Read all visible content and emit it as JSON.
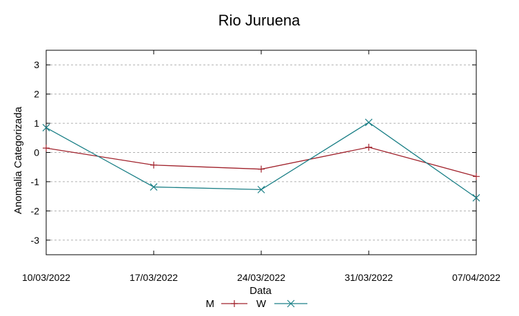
{
  "chart_data": {
    "type": "line",
    "title": "Rio Juruena",
    "xlabel": "Data",
    "ylabel": "Anomalia Categorizada",
    "categories": [
      "10/03/2022",
      "17/03/2022",
      "24/03/2022",
      "31/03/2022",
      "07/04/2022"
    ],
    "yticks": [
      "3",
      "2",
      "1",
      "0",
      "-1",
      "-2",
      "-3"
    ],
    "ylim": [
      -3.5,
      3.5
    ],
    "grid": "horizontal dashed",
    "legend_position": "bottom-center",
    "series": [
      {
        "name": "M",
        "color": "#a0202a",
        "marker": "plus",
        "values": [
          0.15,
          -0.43,
          -0.57,
          0.18,
          -0.82
        ]
      },
      {
        "name": "W",
        "color": "#1a7f86",
        "marker": "cross",
        "values": [
          0.85,
          -1.18,
          -1.27,
          1.03,
          -1.55
        ]
      }
    ]
  }
}
